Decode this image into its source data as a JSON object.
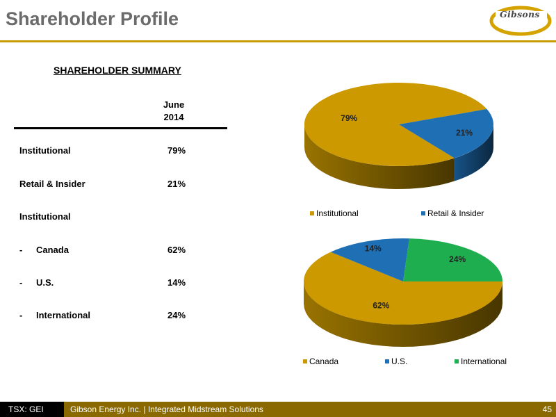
{
  "title": "Shareholder Profile",
  "logo": {
    "text": "Gibsons"
  },
  "summary": {
    "heading": "SHAREHOLDER SUMMARY",
    "column_header": [
      "June",
      "2014"
    ],
    "rows": [
      {
        "dash": "",
        "label": "Institutional",
        "value": "79%"
      },
      {
        "dash": "",
        "label": "Retail & Insider",
        "value": "21%"
      },
      {
        "dash": "",
        "label": "Institutional",
        "value": ""
      },
      {
        "dash": "-",
        "label": "Canada",
        "value": "62%"
      },
      {
        "dash": "-",
        "label": "U.S.",
        "value": "14%"
      },
      {
        "dash": "-",
        "label": "International",
        "value": "24%"
      }
    ]
  },
  "chart_data": [
    {
      "type": "pie",
      "categories": [
        "Institutional",
        "Retail & Insider"
      ],
      "values": [
        79,
        21
      ],
      "data_labels": [
        "79%",
        "21%"
      ],
      "colors": [
        "#cc9900",
        "#1f6fb5"
      ],
      "legend": "bottom"
    },
    {
      "type": "pie",
      "categories": [
        "Canada",
        "U.S.",
        "International"
      ],
      "values": [
        62,
        14,
        24
      ],
      "data_labels": [
        "62%",
        "14%",
        "24%"
      ],
      "colors": [
        "#cc9900",
        "#1f6fb5",
        "#1fae4f"
      ],
      "legend": "bottom"
    }
  ],
  "footer": {
    "ticker": "TSX: GEI",
    "text": "Gibson Energy Inc.   |   Integrated Midstream Solutions",
    "page": "45"
  }
}
